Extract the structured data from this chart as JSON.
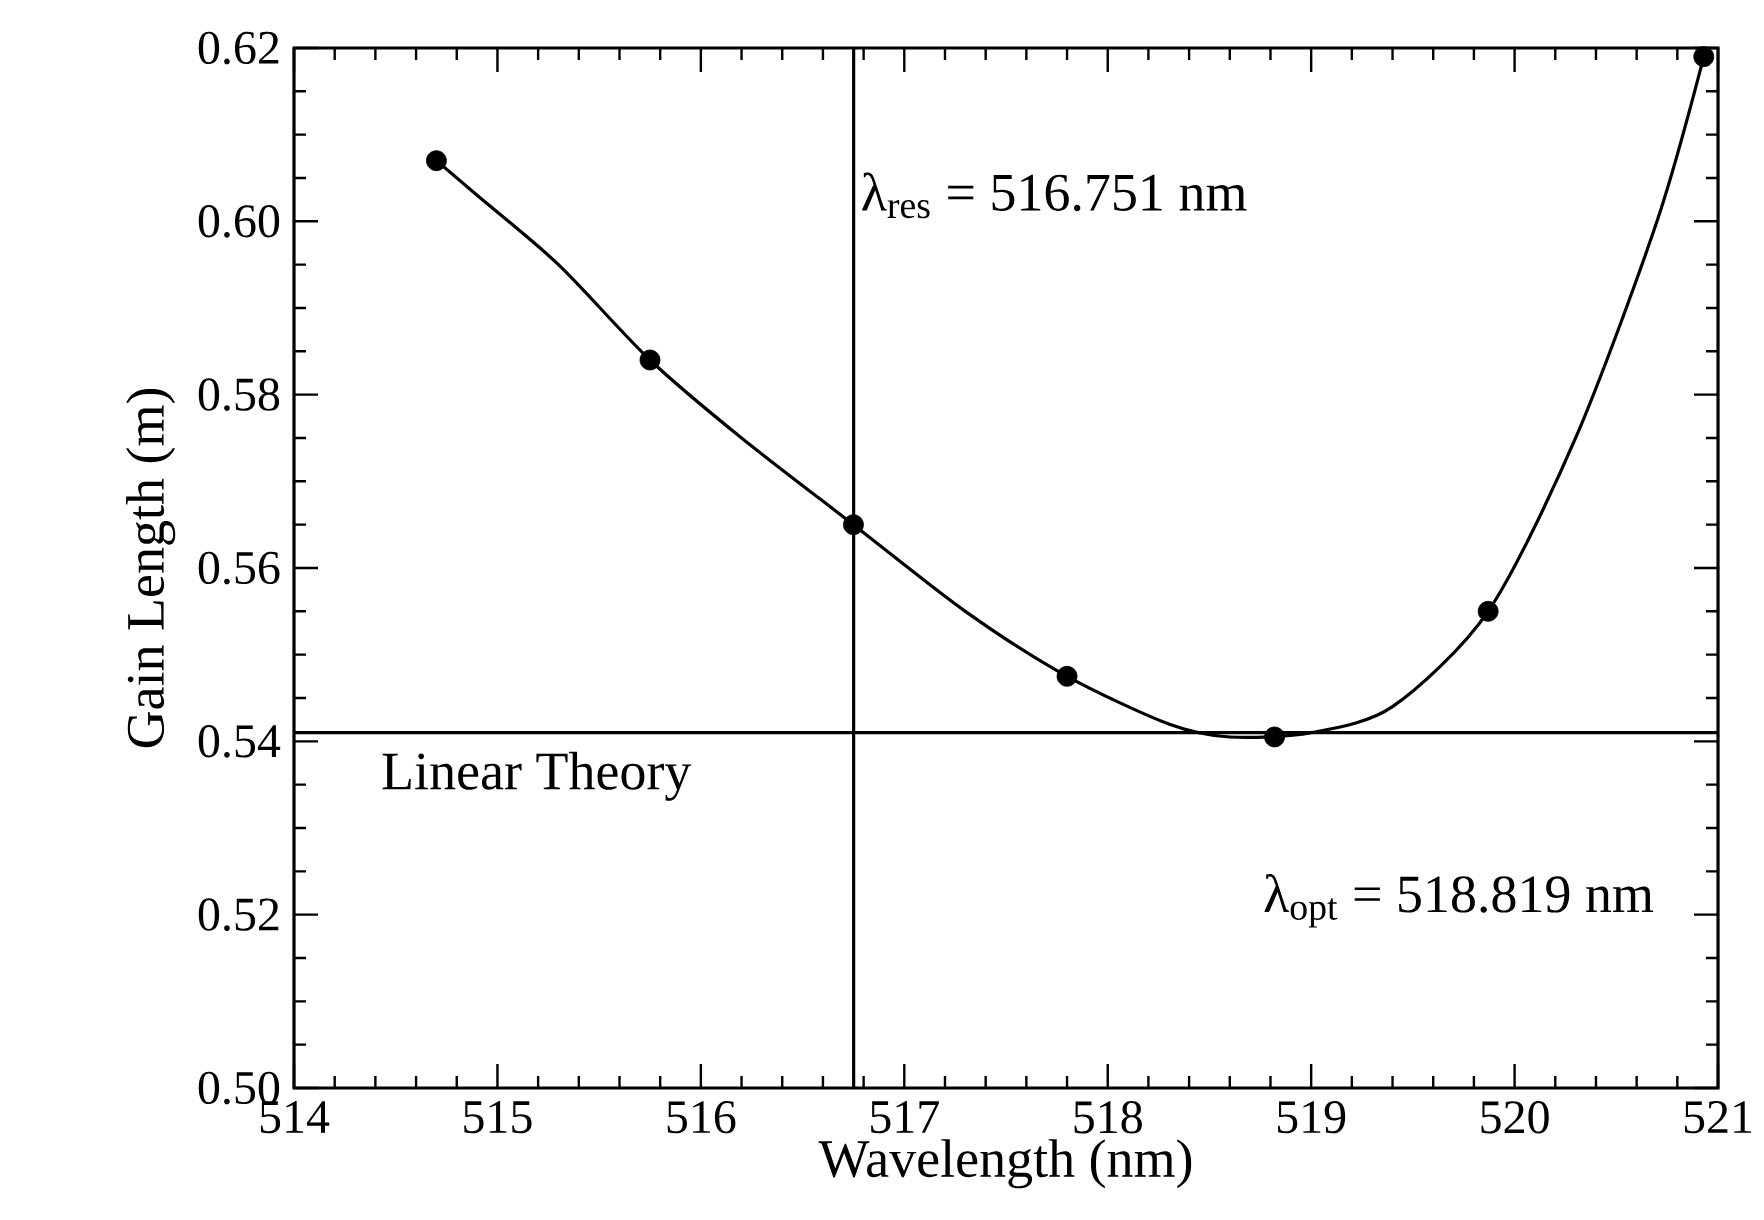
{
  "chart_data": {
    "type": "scatter",
    "xlabel": "Wavelength (nm)",
    "ylabel": "Gain Length (m)",
    "series": [
      {
        "color": "#000000",
        "marker": "circle",
        "x": [
          514.7,
          515.75,
          516.75,
          517.8,
          518.82,
          519.87,
          520.93
        ],
        "values": [
          0.607,
          0.584,
          0.565,
          0.5475,
          0.5405,
          0.555,
          0.619
        ]
      },
      {
        "type": "line",
        "color": "#000000",
        "marker": "none",
        "line_style": "solid",
        "x": [
          514.7,
          514.9,
          515.3,
          515.75,
          516.2,
          516.75,
          517.3,
          517.8,
          518.3,
          518.6,
          519.0,
          519.4,
          519.87,
          520.3,
          520.7,
          520.93
        ],
        "values": [
          0.607,
          0.603,
          0.595,
          0.584,
          0.575,
          0.565,
          0.555,
          0.5475,
          0.542,
          0.5405,
          0.541,
          0.544,
          0.555,
          0.575,
          0.6,
          0.619
        ]
      }
    ],
    "ref_lines": [
      {
        "axis": "x",
        "value": 516.751,
        "label": "λ$_{res}$ = 516.751 nm",
        "color": "#000000"
      },
      {
        "axis": "y",
        "value": 0.541,
        "label": "Linear Theory",
        "color": "#000000"
      }
    ],
    "annotations": [
      "λ$_{opt}$ = 518.819 nm"
    ],
    "xlim": [
      514,
      521
    ],
    "xticks": [
      514,
      515,
      516,
      517,
      518,
      519,
      520,
      521
    ],
    "ylim": [
      0.5,
      0.62
    ],
    "yticks": [
      {
        "value": 0.5,
        "label": "0.50"
      },
      {
        "value": 0.52,
        "label": "0.52"
      },
      {
        "value": 0.54,
        "label": "0.54"
      },
      {
        "value": 0.56,
        "label": "0.56"
      },
      {
        "value": 0.58,
        "label": "0.58"
      },
      {
        "value": 0.6,
        "label": "0.60"
      },
      {
        "value": 0.62,
        "label": "0.62"
      }
    ]
  }
}
